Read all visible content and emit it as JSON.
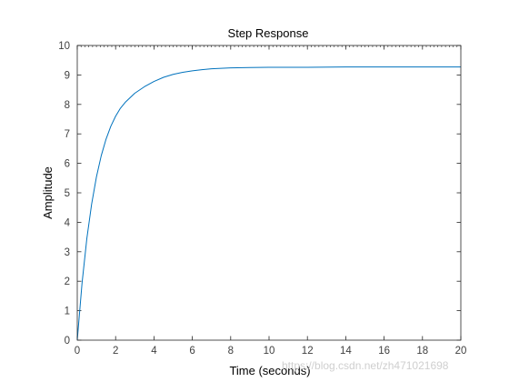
{
  "chart_data": {
    "type": "line",
    "title": "Step Response",
    "xlabel": "Time (seconds)",
    "ylabel": "Amplitude",
    "xlim": [
      0,
      20
    ],
    "ylim": [
      0,
      10
    ],
    "xticks": [
      0,
      2,
      4,
      6,
      8,
      10,
      12,
      14,
      16,
      18,
      20
    ],
    "yticks": [
      0,
      1,
      2,
      3,
      4,
      5,
      6,
      7,
      8,
      9,
      10
    ],
    "grid": false,
    "series": [
      {
        "color": "#0072BD",
        "x": [
          0,
          0.25,
          0.5,
          0.75,
          1,
          1.25,
          1.5,
          1.75,
          2,
          2.25,
          2.5,
          3,
          3.5,
          4,
          4.5,
          5,
          5.5,
          6,
          6.5,
          7,
          8,
          9,
          10,
          12,
          14,
          16,
          18,
          20
        ],
        "y": [
          0,
          1.94,
          3.45,
          4.62,
          5.54,
          6.26,
          6.82,
          7.26,
          7.6,
          7.87,
          8.07,
          8.38,
          8.6,
          8.78,
          8.92,
          9.02,
          9.09,
          9.14,
          9.18,
          9.21,
          9.24,
          9.25,
          9.26,
          9.26,
          9.27,
          9.27,
          9.27,
          9.27
        ]
      }
    ]
  },
  "watermark": "https://blog.csdn.net/zh471021698"
}
